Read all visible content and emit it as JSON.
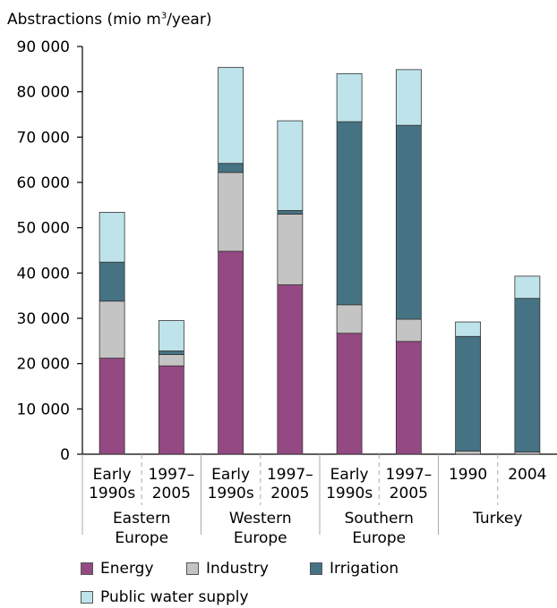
{
  "chart_data": {
    "type": "bar",
    "stacked": true,
    "ylabel_prefix": "Abstractions (mio m",
    "ylabel_sup": "3",
    "ylabel_suffix": "/year)",
    "ylim": [
      0,
      90000
    ],
    "yticks": [
      {
        "value": 0,
        "label": "0"
      },
      {
        "value": 10000,
        "label": "10 000"
      },
      {
        "value": 20000,
        "label": "20 000"
      },
      {
        "value": 30000,
        "label": "30 000"
      },
      {
        "value": 40000,
        "label": "40 000"
      },
      {
        "value": 50000,
        "label": "50 000"
      },
      {
        "value": 60000,
        "label": "60 000"
      },
      {
        "value": 70000,
        "label": "70 000"
      },
      {
        "value": 80000,
        "label": "80 000"
      },
      {
        "value": 90000,
        "label": "90 000"
      }
    ],
    "categories": [
      {
        "line1": "Early",
        "line2": "1990s"
      },
      {
        "line1": "1997–",
        "line2": "2005"
      },
      {
        "line1": "Early",
        "line2": "1990s"
      },
      {
        "line1": "1997–",
        "line2": "2005"
      },
      {
        "line1": "Early",
        "line2": "1990s"
      },
      {
        "line1": "1997–",
        "line2": "2005"
      },
      {
        "line1": "1990",
        "line2": ""
      },
      {
        "line1": "2004",
        "line2": ""
      }
    ],
    "groups": [
      {
        "line1": "Eastern",
        "line2": "Europe",
        "start": 0,
        "end": 1
      },
      {
        "line1": "Western",
        "line2": "Europe",
        "start": 2,
        "end": 3
      },
      {
        "line1": "Southern",
        "line2": "Europe",
        "start": 4,
        "end": 5
      },
      {
        "line1": "Turkey",
        "line2": "",
        "start": 6,
        "end": 7
      }
    ],
    "series": [
      {
        "name": "Energy",
        "color": "#944983",
        "values": [
          21200,
          19500,
          44800,
          37400,
          26700,
          24900,
          0,
          0
        ]
      },
      {
        "name": "Industry",
        "color": "#c4c4c4",
        "values": [
          12600,
          2500,
          17400,
          15600,
          6300,
          4900,
          700,
          500
        ]
      },
      {
        "name": "Irrigation",
        "color": "#457383",
        "values": [
          8600,
          800,
          2000,
          800,
          40400,
          42800,
          25300,
          33900
        ]
      },
      {
        "name": "Public water supply",
        "color": "#bee3ea",
        "values": [
          11000,
          6700,
          21200,
          19800,
          10600,
          12300,
          3200,
          4900
        ]
      }
    ],
    "legend_position": "bottom"
  }
}
